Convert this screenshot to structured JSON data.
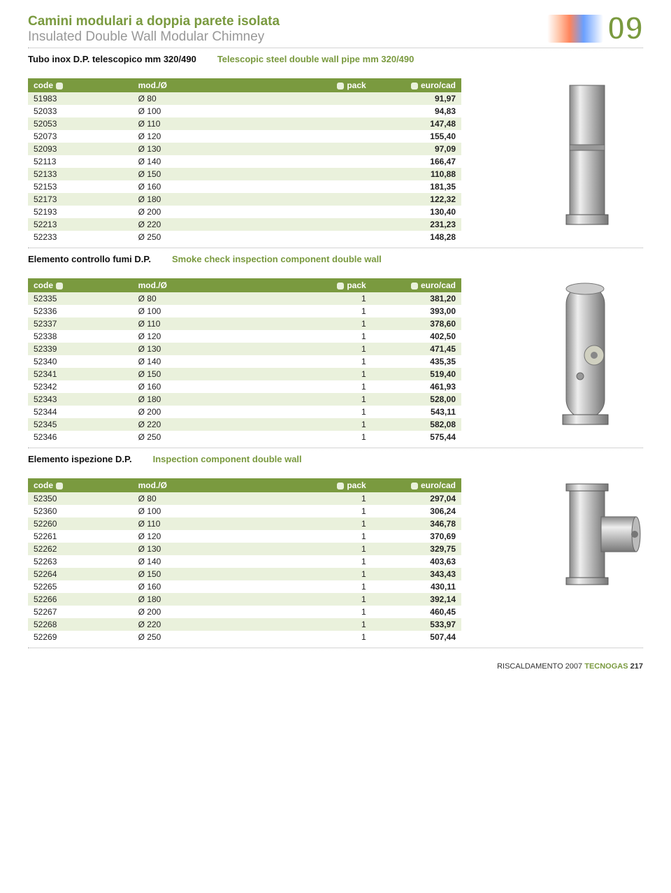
{
  "header": {
    "title_it": "Camini modulari a doppia parete isolata",
    "title_en": "Insulated Double Wall Modular Chimney",
    "badge": "09"
  },
  "sections": [
    {
      "sub_it": "Tubo inox D.P. telescopico mm 320/490",
      "sub_en": "Telescopic steel double wall pipe mm 320/490",
      "show_pack": false,
      "image": "pipe",
      "headers": {
        "code": "code",
        "mod": "mod./Ø",
        "pack": "pack",
        "price": "euro/cad"
      },
      "rows": [
        {
          "code": "51983",
          "mod": "Ø 80",
          "price": "91,97"
        },
        {
          "code": "52033",
          "mod": "Ø 100",
          "price": "94,83"
        },
        {
          "code": "52053",
          "mod": "Ø 110",
          "price": "147,48"
        },
        {
          "code": "52073",
          "mod": "Ø 120",
          "price": "155,40"
        },
        {
          "code": "52093",
          "mod": "Ø 130",
          "price": "97,09"
        },
        {
          "code": "52113",
          "mod": "Ø 140",
          "price": "166,47"
        },
        {
          "code": "52133",
          "mod": "Ø 150",
          "price": "110,88"
        },
        {
          "code": "52153",
          "mod": "Ø 160",
          "price": "181,35"
        },
        {
          "code": "52173",
          "mod": "Ø 180",
          "price": "122,32"
        },
        {
          "code": "52193",
          "mod": "Ø 200",
          "price": "130,40"
        },
        {
          "code": "52213",
          "mod": "Ø 220",
          "price": "231,23"
        },
        {
          "code": "52233",
          "mod": "Ø 250",
          "price": "148,28"
        }
      ]
    },
    {
      "sub_it": "Elemento controllo fumi D.P.",
      "sub_en": "Smoke check inspection component double wall",
      "show_pack": true,
      "image": "inspect",
      "headers": {
        "code": "code",
        "mod": "mod./Ø",
        "pack": "pack",
        "price": "euro/cad"
      },
      "rows": [
        {
          "code": "52335",
          "mod": "Ø 80",
          "pack": "1",
          "price": "381,20"
        },
        {
          "code": "52336",
          "mod": "Ø 100",
          "pack": "1",
          "price": "393,00"
        },
        {
          "code": "52337",
          "mod": "Ø 110",
          "pack": "1",
          "price": "378,60"
        },
        {
          "code": "52338",
          "mod": "Ø 120",
          "pack": "1",
          "price": "402,50"
        },
        {
          "code": "52339",
          "mod": "Ø 130",
          "pack": "1",
          "price": "471,45"
        },
        {
          "code": "52340",
          "mod": "Ø 140",
          "pack": "1",
          "price": "435,35"
        },
        {
          "code": "52341",
          "mod": "Ø 150",
          "pack": "1",
          "price": "519,40"
        },
        {
          "code": "52342",
          "mod": "Ø 160",
          "pack": "1",
          "price": "461,93"
        },
        {
          "code": "52343",
          "mod": "Ø 180",
          "pack": "1",
          "price": "528,00"
        },
        {
          "code": "52344",
          "mod": "Ø 200",
          "pack": "1",
          "price": "543,11"
        },
        {
          "code": "52345",
          "mod": "Ø 220",
          "pack": "1",
          "price": "582,08"
        },
        {
          "code": "52346",
          "mod": "Ø 250",
          "pack": "1",
          "price": "575,44"
        }
      ]
    },
    {
      "sub_it": "Elemento ispezione D.P.",
      "sub_en": "Inspection component double wall",
      "show_pack": true,
      "image": "tee",
      "headers": {
        "code": "code",
        "mod": "mod./Ø",
        "pack": "pack",
        "price": "euro/cad"
      },
      "rows": [
        {
          "code": "52350",
          "mod": "Ø 80",
          "pack": "1",
          "price": "297,04"
        },
        {
          "code": "52360",
          "mod": "Ø 100",
          "pack": "1",
          "price": "306,24"
        },
        {
          "code": "52260",
          "mod": "Ø 110",
          "pack": "1",
          "price": "346,78"
        },
        {
          "code": "52261",
          "mod": "Ø 120",
          "pack": "1",
          "price": "370,69"
        },
        {
          "code": "52262",
          "mod": "Ø 130",
          "pack": "1",
          "price": "329,75"
        },
        {
          "code": "52263",
          "mod": "Ø 140",
          "pack": "1",
          "price": "403,63"
        },
        {
          "code": "52264",
          "mod": "Ø 150",
          "pack": "1",
          "price": "343,43"
        },
        {
          "code": "52265",
          "mod": "Ø 160",
          "pack": "1",
          "price": "430,11"
        },
        {
          "code": "52266",
          "mod": "Ø 180",
          "pack": "1",
          "price": "392,14"
        },
        {
          "code": "52267",
          "mod": "Ø 200",
          "pack": "1",
          "price": "460,45"
        },
        {
          "code": "52268",
          "mod": "Ø 220",
          "pack": "1",
          "price": "533,97"
        },
        {
          "code": "52269",
          "mod": "Ø 250",
          "pack": "1",
          "price": "507,44"
        }
      ]
    }
  ],
  "footer": {
    "text": "RISCALDAMENTO 2007",
    "brand": "TECNOGAS",
    "page": "217"
  },
  "colors": {
    "accent": "#7a9a3f",
    "row_odd": "#eaf1dc",
    "row_even": "#ffffff",
    "header_bg": "#7a9a3f",
    "header_fg": "#ffffff"
  }
}
